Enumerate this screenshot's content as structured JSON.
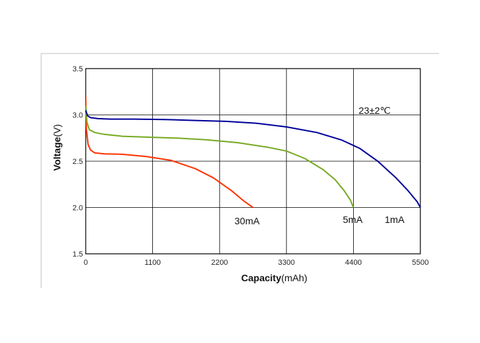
{
  "chart_data": {
    "type": "line",
    "title": "",
    "annotation": "23±2℃",
    "xlabel_bold": "Capacity",
    "xlabel_unit": "(mAh)",
    "ylabel_bold": "Voltage",
    "ylabel_unit": "(V)",
    "xlim": [
      0,
      5500
    ],
    "ylim": [
      1.5,
      3.5
    ],
    "x_ticks": [
      "0",
      "1100",
      "2200",
      "3300",
      "4400",
      "5500"
    ],
    "y_ticks": [
      "1.5",
      "2.0",
      "2.5",
      "3.0",
      "3.5"
    ],
    "grid": true,
    "colors": {
      "30mA": "#ff3300",
      "5mA": "#77aa22",
      "1mA": "#000099",
      "grid": "#000000"
    },
    "series": [
      {
        "name": "30mA",
        "x": [
          0,
          10,
          40,
          80,
          150,
          300,
          600,
          1000,
          1400,
          1800,
          2100,
          2400,
          2600,
          2750
        ],
        "y": [
          3.2,
          2.85,
          2.68,
          2.62,
          2.59,
          2.58,
          2.575,
          2.55,
          2.51,
          2.42,
          2.32,
          2.18,
          2.07,
          2.0
        ]
      },
      {
        "name": "5mA",
        "x": [
          0,
          20,
          60,
          150,
          300,
          600,
          1000,
          1500,
          2000,
          2500,
          3000,
          3300,
          3600,
          3900,
          4100,
          4250,
          4350,
          4400
        ],
        "y": [
          3.1,
          2.92,
          2.84,
          2.81,
          2.79,
          2.77,
          2.76,
          2.75,
          2.73,
          2.7,
          2.65,
          2.61,
          2.53,
          2.41,
          2.3,
          2.18,
          2.08,
          2.0
        ]
      },
      {
        "name": "1mA",
        "x": [
          0,
          30,
          80,
          200,
          400,
          800,
          1300,
          1800,
          2300,
          2800,
          3300,
          3800,
          4200,
          4500,
          4800,
          5100,
          5300,
          5450,
          5500
        ],
        "y": [
          3.05,
          2.99,
          2.97,
          2.96,
          2.955,
          2.955,
          2.95,
          2.94,
          2.93,
          2.91,
          2.87,
          2.81,
          2.73,
          2.64,
          2.5,
          2.32,
          2.18,
          2.06,
          2.0
        ]
      }
    ]
  }
}
